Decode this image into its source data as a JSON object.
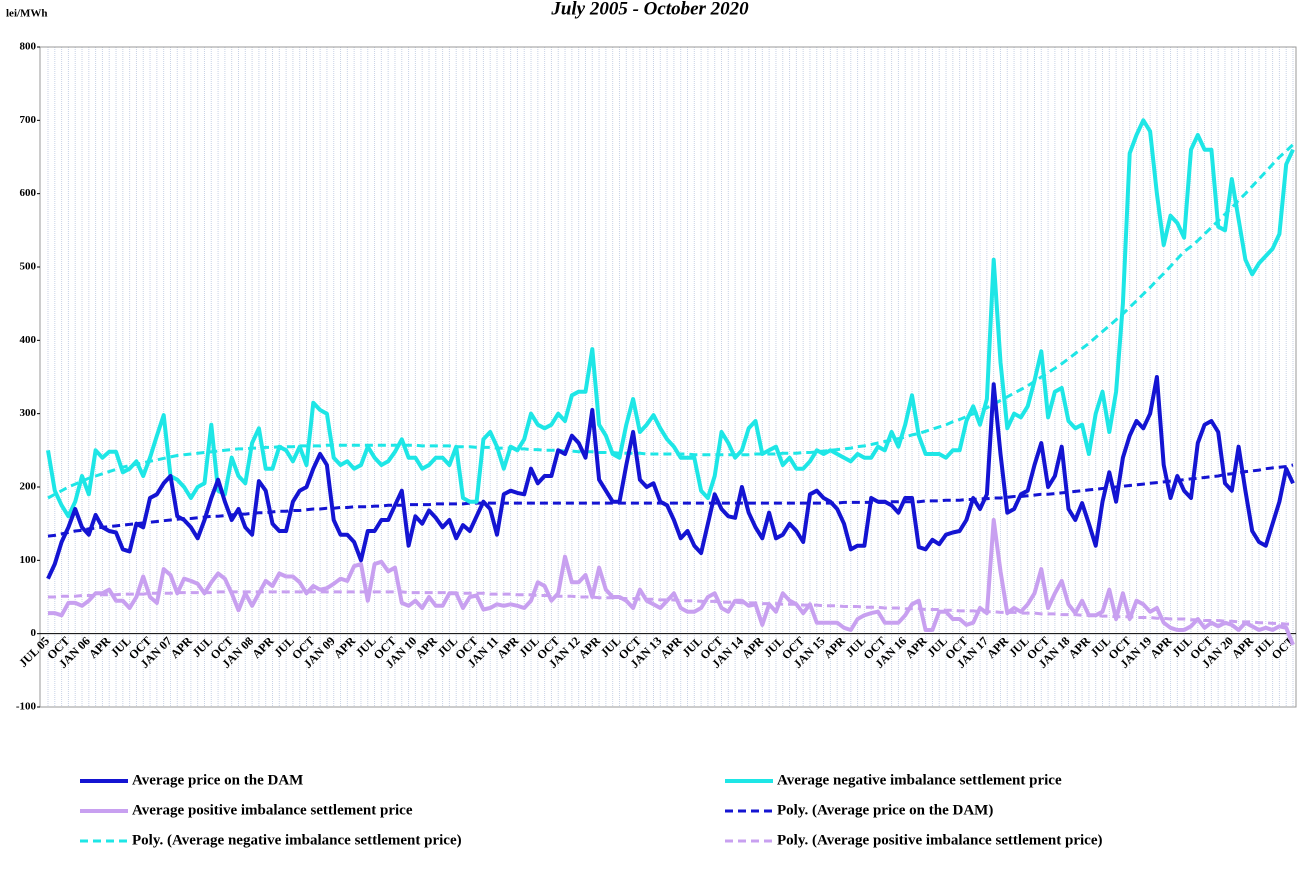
{
  "chart_data": {
    "type": "line",
    "title": "July 2005 - October 2020",
    "y_label": "lei/MWh",
    "ylim": [
      -100,
      800
    ],
    "yticks": [
      -100,
      0,
      100,
      200,
      300,
      400,
      500,
      600,
      700,
      800
    ],
    "grid": "vertical",
    "legend": "bottom",
    "categories": [
      "JUL 05",
      null,
      null,
      "OCT",
      null,
      null,
      "JAN 06",
      null,
      null,
      "APR",
      null,
      null,
      "JUL",
      null,
      null,
      "OCT",
      null,
      null,
      "JAN 07",
      null,
      null,
      "APR",
      null,
      null,
      "JUL",
      null,
      null,
      "OCT",
      null,
      null,
      "JAN 08",
      null,
      null,
      "APR",
      null,
      null,
      "JUL",
      null,
      null,
      "OCT",
      null,
      null,
      "JAN 09",
      null,
      null,
      "APR",
      null,
      null,
      "JUL",
      null,
      null,
      "OCT",
      null,
      null,
      "JAN 10",
      null,
      null,
      "APR",
      null,
      null,
      "JUL",
      null,
      null,
      "OCT",
      null,
      null,
      "JAN 11",
      null,
      null,
      "APR",
      null,
      null,
      "JUL",
      null,
      null,
      "OCT",
      null,
      null,
      "JAN 12",
      null,
      null,
      "APR",
      null,
      null,
      "JUL",
      null,
      null,
      "OCT",
      null,
      null,
      "JAN 13",
      null,
      null,
      "APR",
      null,
      null,
      "JUL",
      null,
      null,
      "OCT",
      null,
      null,
      "JAN 14",
      null,
      null,
      "APR",
      null,
      null,
      "JUL",
      null,
      null,
      "OCT",
      null,
      null,
      "JAN 15",
      null,
      null,
      "APR",
      null,
      null,
      "JUL",
      null,
      null,
      "OCT",
      null,
      null,
      "JAN 16",
      null,
      null,
      "APR",
      null,
      null,
      "JUL",
      null,
      null,
      "OCT",
      null,
      null,
      "JAN 17",
      null,
      null,
      "APR",
      null,
      null,
      "JUL",
      null,
      null,
      "OCT",
      null,
      null,
      "JAN 18",
      null,
      null,
      "APR",
      null,
      null,
      "JUL",
      null,
      null,
      "OCT",
      null,
      null,
      "JAN 19",
      null,
      null,
      "APR",
      null,
      null,
      "JUL",
      null,
      null,
      "OCT",
      null,
      null,
      "JAN 20",
      null,
      null,
      "APR",
      null,
      null,
      "JUL",
      null,
      null,
      "OCT"
    ],
    "series": [
      {
        "name": "Average price on the DAM",
        "color": "#1414d2",
        "style": "solid",
        "values": [
          75,
          95,
          125,
          145,
          170,
          145,
          135,
          162,
          145,
          140,
          138,
          115,
          112,
          150,
          145,
          185,
          190,
          205,
          215,
          160,
          155,
          145,
          130,
          155,
          185,
          210,
          180,
          155,
          170,
          145,
          135,
          208,
          195,
          150,
          140,
          140,
          180,
          195,
          200,
          225,
          245,
          230,
          155,
          135,
          135,
          125,
          100,
          140,
          140,
          155,
          155,
          175,
          195,
          120,
          160,
          150,
          168,
          158,
          145,
          155,
          130,
          148,
          140,
          160,
          180,
          170,
          135,
          190,
          195,
          192,
          190,
          225,
          205,
          215,
          215,
          250,
          245,
          270,
          260,
          240,
          305,
          210,
          195,
          180,
          180,
          230,
          275,
          210,
          200,
          205,
          180,
          175,
          155,
          130,
          140,
          120,
          110,
          150,
          190,
          170,
          160,
          158,
          200,
          165,
          145,
          130,
          165,
          130,
          135,
          150,
          140,
          125,
          190,
          195,
          185,
          180,
          170,
          150,
          115,
          120,
          120,
          185,
          180,
          180,
          175,
          165,
          185,
          185,
          118,
          115,
          128,
          122,
          135,
          138,
          140,
          155,
          185,
          170,
          190,
          340,
          245,
          165,
          170,
          190,
          195,
          230,
          260,
          200,
          215,
          255,
          170,
          155,
          178,
          150,
          120,
          180,
          220,
          180,
          240,
          270,
          290,
          280,
          300,
          350,
          230,
          185,
          215,
          195,
          185,
          260,
          285,
          290,
          275,
          205,
          195,
          255,
          195,
          140,
          125,
          120,
          150,
          180,
          225,
          205
        ]
      },
      {
        "name": "Average negative imbalance settlement price",
        "color": "#1ee6e6",
        "style": "solid",
        "values": [
          250,
          195,
          175,
          160,
          180,
          215,
          190,
          250,
          240,
          248,
          248,
          220,
          225,
          235,
          215,
          240,
          270,
          298,
          215,
          210,
          200,
          185,
          200,
          205,
          285,
          195,
          190,
          240,
          215,
          205,
          260,
          280,
          225,
          225,
          255,
          250,
          235,
          255,
          230,
          315,
          305,
          300,
          240,
          230,
          235,
          225,
          230,
          255,
          240,
          230,
          235,
          248,
          265,
          240,
          240,
          225,
          230,
          240,
          240,
          230,
          255,
          185,
          180,
          180,
          265,
          275,
          255,
          225,
          255,
          250,
          265,
          300,
          285,
          280,
          285,
          300,
          290,
          325,
          330,
          330,
          388,
          285,
          270,
          245,
          240,
          285,
          320,
          275,
          285,
          298,
          280,
          265,
          255,
          240,
          240,
          240,
          195,
          185,
          215,
          275,
          260,
          240,
          250,
          280,
          290,
          245,
          250,
          255,
          230,
          240,
          225,
          225,
          235,
          250,
          245,
          250,
          245,
          240,
          235,
          245,
          240,
          240,
          255,
          250,
          275,
          255,
          285,
          325,
          270,
          245,
          245,
          245,
          240,
          250,
          250,
          290,
          310,
          285,
          320,
          510,
          370,
          280,
          300,
          295,
          310,
          345,
          385,
          295,
          330,
          335,
          290,
          280,
          285,
          245,
          300,
          330,
          275,
          330,
          450,
          655,
          680,
          700,
          685,
          600,
          530,
          570,
          560,
          540,
          660,
          680,
          660,
          660,
          555,
          550,
          620,
          565,
          510,
          490,
          505,
          515,
          525,
          545,
          640,
          660
        ]
      },
      {
        "name": "Average positive imbalance settlement price",
        "color": "#c8a0f0",
        "style": "solid",
        "values": [
          28,
          28,
          25,
          42,
          42,
          38,
          45,
          55,
          55,
          60,
          45,
          45,
          35,
          50,
          78,
          50,
          42,
          88,
          80,
          55,
          75,
          72,
          68,
          55,
          70,
          82,
          75,
          55,
          32,
          55,
          38,
          55,
          72,
          65,
          82,
          78,
          78,
          70,
          55,
          65,
          60,
          62,
          68,
          75,
          72,
          92,
          95,
          45,
          95,
          98,
          85,
          90,
          42,
          38,
          45,
          35,
          50,
          38,
          38,
          55,
          55,
          35,
          50,
          52,
          33,
          35,
          40,
          38,
          40,
          38,
          35,
          45,
          70,
          65,
          45,
          55,
          105,
          70,
          70,
          80,
          50,
          90,
          60,
          50,
          50,
          45,
          35,
          60,
          45,
          40,
          35,
          45,
          55,
          35,
          30,
          30,
          35,
          50,
          55,
          35,
          30,
          45,
          45,
          38,
          40,
          12,
          40,
          30,
          55,
          45,
          40,
          28,
          40,
          15,
          15,
          15,
          15,
          8,
          5,
          20,
          25,
          28,
          30,
          15,
          15,
          15,
          25,
          40,
          45,
          5,
          5,
          30,
          30,
          20,
          20,
          12,
          15,
          35,
          28,
          155,
          85,
          28,
          35,
          30,
          40,
          55,
          88,
          35,
          55,
          72,
          40,
          28,
          45,
          25,
          25,
          30,
          60,
          20,
          55,
          20,
          45,
          40,
          30,
          35,
          15,
          8,
          5,
          5,
          10,
          20,
          8,
          15,
          10,
          15,
          12,
          5,
          15,
          10,
          5,
          8,
          5,
          10,
          8,
          -15
        ]
      },
      {
        "name": "Poly. (Average price on the DAM)",
        "color": "#1414d2",
        "style": "dashed",
        "values": [
          133,
          134,
          136,
          138,
          140,
          141,
          143,
          144,
          145,
          146,
          147,
          148,
          149,
          150,
          151,
          152,
          153,
          154,
          155,
          156,
          157,
          157,
          158,
          159,
          160,
          160,
          161,
          162,
          163,
          163,
          164,
          165,
          165,
          166,
          167,
          167,
          168,
          168,
          169,
          170,
          170,
          171,
          171,
          172,
          172,
          173,
          173,
          173,
          174,
          174,
          175,
          175,
          175,
          176,
          176,
          176,
          176,
          177,
          177,
          177,
          177,
          177,
          178,
          178,
          178,
          178,
          178,
          178,
          178,
          178,
          178,
          178,
          178,
          178,
          178,
          178,
          178,
          178,
          178,
          178,
          178,
          178,
          178,
          178,
          178,
          178,
          178,
          178,
          178,
          178,
          178,
          178,
          178,
          178,
          178,
          178,
          178,
          178,
          178,
          178,
          178,
          178,
          178,
          178,
          178,
          178,
          178,
          178,
          178,
          178,
          178,
          178,
          178,
          178,
          178,
          178,
          178,
          179,
          179,
          179,
          179,
          179,
          179,
          179,
          180,
          180,
          180,
          180,
          180,
          181,
          181,
          181,
          182,
          182,
          182,
          183,
          183,
          184,
          184,
          185,
          185,
          186,
          187,
          187,
          188,
          189,
          190,
          190,
          191,
          192,
          193,
          194,
          195,
          196,
          197,
          198,
          199,
          200,
          201,
          202,
          203,
          204,
          205,
          206,
          207,
          208,
          209,
          210,
          211,
          212,
          213,
          214,
          215,
          217,
          218,
          219,
          221,
          222,
          223,
          225,
          226,
          227,
          228,
          230
        ]
      },
      {
        "name": "Poly. (Average negative imbalance settlement price)",
        "color": "#1ee6e6",
        "style": "dashed",
        "values": [
          185,
          190,
          195,
          200,
          204,
          208,
          212,
          215,
          218,
          221,
          224,
          227,
          229,
          231,
          233,
          235,
          237,
          239,
          241,
          243,
          244,
          245,
          246,
          247,
          248,
          249,
          250,
          251,
          252,
          252,
          253,
          253,
          254,
          254,
          255,
          255,
          255,
          256,
          256,
          256,
          256,
          257,
          257,
          257,
          257,
          257,
          257,
          257,
          257,
          257,
          257,
          257,
          257,
          257,
          257,
          256,
          256,
          256,
          256,
          256,
          255,
          255,
          255,
          254,
          254,
          254,
          253,
          253,
          253,
          252,
          252,
          251,
          251,
          250,
          250,
          250,
          249,
          249,
          248,
          248,
          248,
          247,
          247,
          247,
          246,
          246,
          246,
          246,
          245,
          245,
          245,
          245,
          245,
          245,
          245,
          244,
          244,
          244,
          244,
          244,
          244,
          244,
          244,
          244,
          245,
          245,
          245,
          245,
          246,
          246,
          246,
          247,
          247,
          248,
          249,
          250,
          251,
          252,
          253,
          255,
          256,
          258,
          260,
          262,
          264,
          266,
          268,
          271,
          273,
          276,
          279,
          282,
          285,
          289,
          292,
          296,
          300,
          304,
          308,
          313,
          318,
          323,
          328,
          333,
          338,
          344,
          350,
          356,
          362,
          368,
          375,
          382,
          389,
          396,
          404,
          412,
          420,
          428,
          436,
          445,
          454,
          463,
          472,
          482,
          491,
          501,
          511,
          521,
          528,
          536,
          545,
          554,
          563,
          572,
          581,
          591,
          600,
          610,
          620,
          630,
          640,
          650,
          658,
          667
        ]
      },
      {
        "name": "Poly. (Average positive imbalance settlement price)",
        "color": "#c8a0f0",
        "style": "dashed",
        "values": [
          50,
          50,
          51,
          51,
          51,
          52,
          52,
          52,
          53,
          53,
          53,
          54,
          54,
          54,
          54,
          55,
          55,
          55,
          55,
          56,
          56,
          56,
          56,
          56,
          56,
          57,
          57,
          57,
          57,
          57,
          57,
          57,
          57,
          57,
          57,
          57,
          57,
          57,
          57,
          57,
          57,
          57,
          57,
          57,
          57,
          57,
          57,
          57,
          57,
          57,
          57,
          57,
          57,
          56,
          56,
          56,
          56,
          56,
          56,
          56,
          55,
          55,
          55,
          55,
          55,
          54,
          54,
          54,
          54,
          53,
          53,
          53,
          52,
          52,
          52,
          51,
          51,
          51,
          50,
          50,
          50,
          49,
          49,
          49,
          48,
          48,
          48,
          47,
          47,
          47,
          46,
          46,
          46,
          45,
          45,
          45,
          44,
          44,
          44,
          43,
          43,
          43,
          42,
          42,
          42,
          41,
          41,
          41,
          40,
          40,
          40,
          39,
          39,
          39,
          38,
          38,
          38,
          37,
          37,
          37,
          36,
          36,
          36,
          35,
          35,
          35,
          34,
          34,
          34,
          33,
          33,
          33,
          32,
          32,
          31,
          31,
          31,
          30,
          30,
          30,
          29,
          29,
          29,
          28,
          28,
          28,
          27,
          27,
          27,
          26,
          26,
          26,
          25,
          25,
          25,
          24,
          24,
          23,
          23,
          23,
          22,
          22,
          22,
          21,
          21,
          20,
          20,
          20,
          19,
          19,
          18,
          18,
          18,
          17,
          17,
          16,
          16,
          16,
          15,
          15,
          14,
          14,
          13,
          13
        ]
      }
    ]
  }
}
